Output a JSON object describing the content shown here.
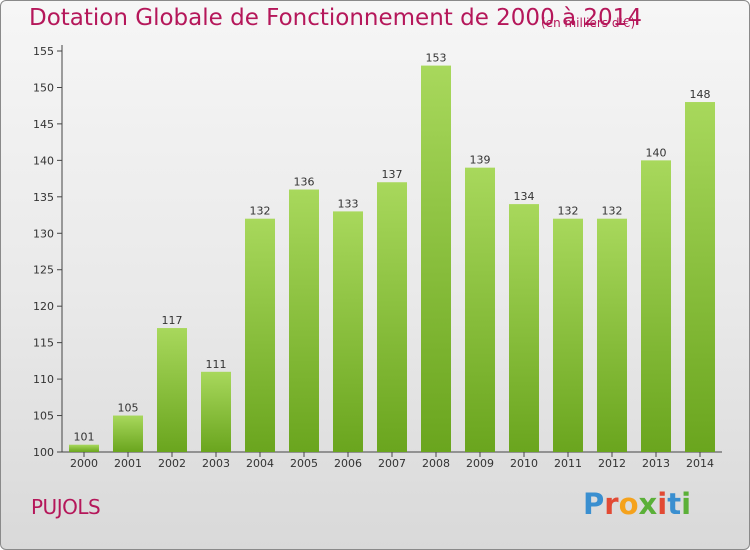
{
  "chart_data": {
    "type": "bar",
    "title": "Dotation Globale de Fonctionnement de 2000 à 2014",
    "subtitle": "(en milliers d'€)",
    "categories": [
      "2000",
      "2001",
      "2002",
      "2003",
      "2004",
      "2005",
      "2006",
      "2007",
      "2008",
      "2009",
      "2010",
      "2011",
      "2012",
      "2013",
      "2014"
    ],
    "values": [
      101,
      105,
      117,
      111,
      132,
      136,
      133,
      137,
      153,
      139,
      134,
      132,
      132,
      140,
      148
    ],
    "ylim": [
      100,
      155
    ],
    "yticks": [
      100,
      105,
      110,
      115,
      120,
      125,
      130,
      135,
      140,
      145,
      150,
      155
    ],
    "grid": false,
    "bar_color_top": "#a8d85c",
    "bar_color_bottom": "#6aa51e",
    "title_color": "#b5175a"
  },
  "footer": {
    "commune": "PUJOLS",
    "logo_text": "Proxiti",
    "logo_colors": [
      "#3a8fd0",
      "#e24a34",
      "#f5a21c",
      "#5bb038",
      "#e24a34",
      "#3a8fd0",
      "#5bb038"
    ]
  }
}
